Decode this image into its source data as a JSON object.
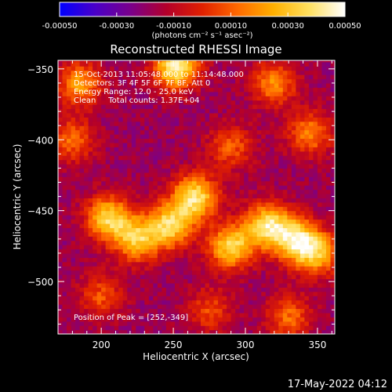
{
  "chart_data": {
    "type": "heatmap",
    "title": "Reconstructed RHESSI Image",
    "xlabel": "Heliocentric X (arcsec)",
    "ylabel": "Heliocentric Y (arcsec)",
    "xlim": [
      170,
      362
    ],
    "ylim": [
      -537,
      -344
    ],
    "x_ticks": [
      200,
      250,
      300,
      350
    ],
    "y_ticks": [
      -350,
      -400,
      -450,
      -500
    ],
    "colorbar": {
      "min": -0.0005,
      "max": 0.0005,
      "ticks": [
        -0.0005,
        -0.0003,
        -0.0001,
        0.0001,
        0.0003,
        0.0005
      ],
      "tick_labels": [
        "-0.00050",
        "-0.00030",
        "-0.00010",
        "0.00010",
        "0.00030",
        "0.00050"
      ],
      "units_label": "(photons cm⁻² s⁻¹ asec⁻²)",
      "colormap": [
        "#0000ff",
        "#4a00c8",
        "#7a008a",
        "#b4002a",
        "#e02000",
        "#ff6a00",
        "#ffb000",
        "#ffe060",
        "#ffffff"
      ]
    },
    "annotations": [
      "15-Oct-2013 11:05:48.000 to 11:14:48.000",
      "Detectors: 3F 4F 5F 6F 7F 8F, Att 0",
      "Energy Range: 12.0 - 25.0 keV",
      "Clean     Total counts: 1.37E+04"
    ],
    "peak_label": "Position of Peak = [252,-349]",
    "peak": [
      252,
      -349
    ],
    "sources": [
      {
        "x": 252,
        "y": -348,
        "value": 0.00052
      },
      {
        "x": 265,
        "y": -440,
        "value": 0.00045
      },
      {
        "x": 248,
        "y": -460,
        "value": 0.0004
      },
      {
        "x": 205,
        "y": -455,
        "value": 0.0004
      },
      {
        "x": 225,
        "y": -470,
        "value": 0.00035
      },
      {
        "x": 290,
        "y": -475,
        "value": 0.0004
      },
      {
        "x": 315,
        "y": -460,
        "value": 0.00042
      },
      {
        "x": 335,
        "y": -470,
        "value": 0.0004
      },
      {
        "x": 350,
        "y": -480,
        "value": 0.0003
      },
      {
        "x": 185,
        "y": -360,
        "value": 0.00025
      },
      {
        "x": 320,
        "y": -360,
        "value": 0.00022
      },
      {
        "x": 345,
        "y": -395,
        "value": 0.0002
      },
      {
        "x": 180,
        "y": -400,
        "value": 0.00015
      },
      {
        "x": 290,
        "y": -405,
        "value": 0.00012
      },
      {
        "x": 330,
        "y": -525,
        "value": 0.00015
      },
      {
        "x": 200,
        "y": -510,
        "value": 0.0001
      },
      {
        "x": 275,
        "y": -520,
        "value": 8e-05
      }
    ]
  },
  "footer_timestamp": "17-May-2022 04:12"
}
